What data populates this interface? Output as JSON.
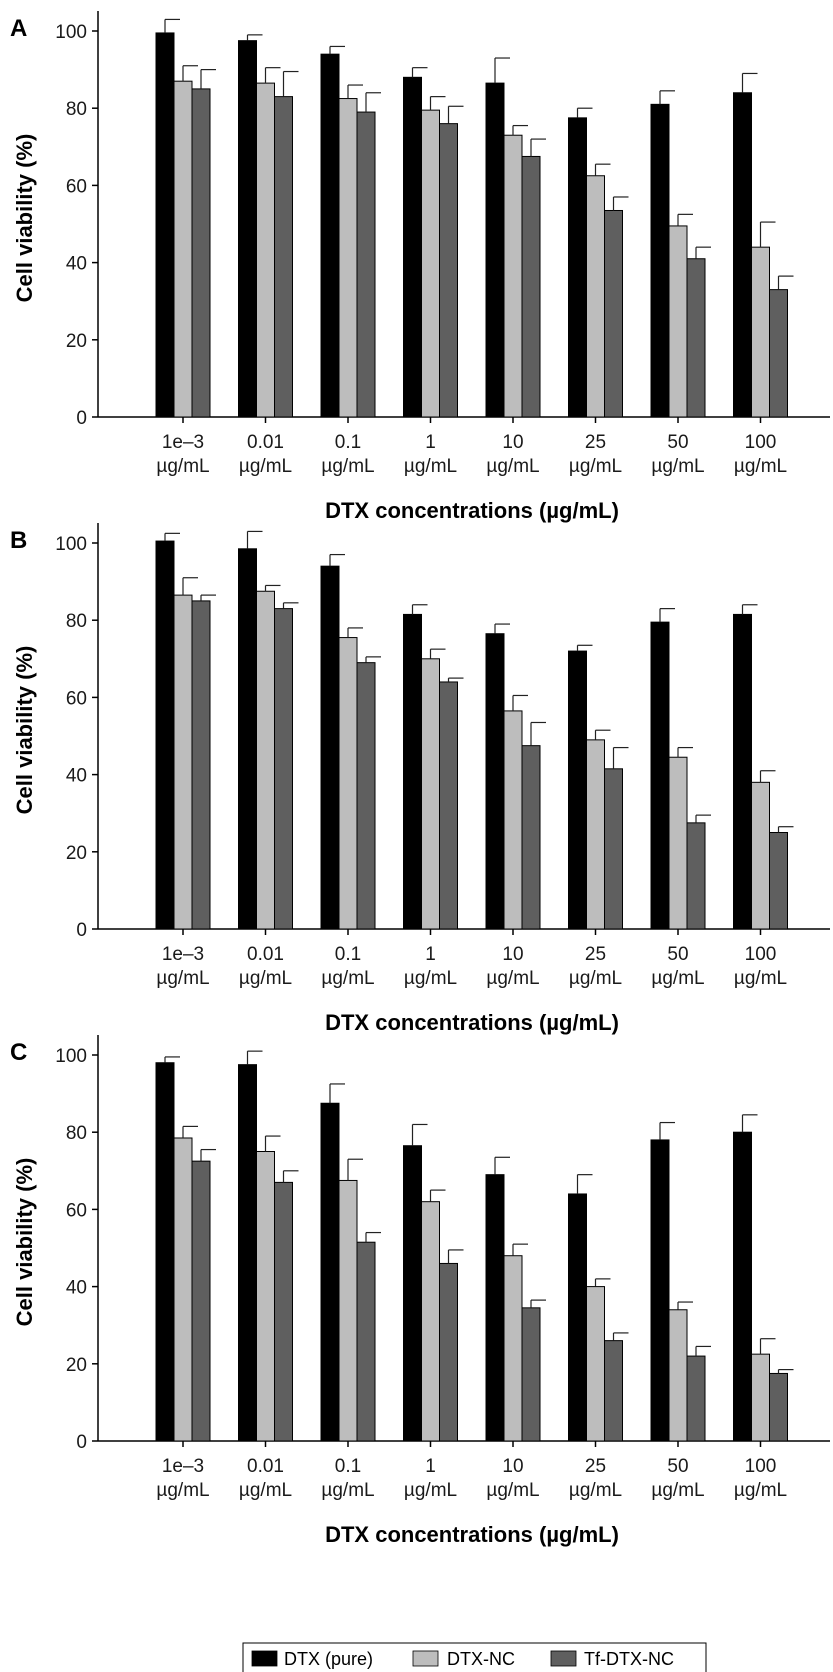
{
  "legend": [
    {
      "label": "DTX (pure)",
      "color": "#000000"
    },
    {
      "label": "DTX-NC",
      "color": "#bdbdbd"
    },
    {
      "label": "Tf-DTX-NC",
      "color": "#5f5f5f"
    }
  ],
  "chart_data": [
    {
      "type": "bar",
      "panel": "A",
      "xlabel": "DTX concentrations (µg/mL)",
      "ylabel": "Cell viability (%)",
      "ylim": [
        0,
        100
      ],
      "yticks": [
        "0",
        "20",
        "40",
        "60",
        "80",
        "100"
      ],
      "categories": [
        [
          "1e–3",
          "µg/mL"
        ],
        [
          "0.01",
          "µg/mL"
        ],
        [
          "0.1",
          "µg/mL"
        ],
        [
          "1",
          "µg/mL"
        ],
        [
          "10",
          "µg/mL"
        ],
        [
          "25",
          "µg/mL"
        ],
        [
          "50",
          "µg/mL"
        ],
        [
          "100",
          "µg/mL"
        ]
      ],
      "series": [
        {
          "name": "DTX (pure)",
          "values": [
            99.5,
            97.5,
            94,
            88,
            86.5,
            77.5,
            81,
            84
          ],
          "errors": [
            3.5,
            1.5,
            2,
            2.5,
            6.5,
            2.5,
            3.5,
            5
          ]
        },
        {
          "name": "DTX-NC",
          "values": [
            87,
            86.5,
            82.5,
            79.5,
            73,
            62.5,
            49.5,
            44
          ],
          "errors": [
            4,
            4,
            3.5,
            3.5,
            2.5,
            3,
            3,
            6.5
          ]
        },
        {
          "name": "Tf-DTX-NC",
          "values": [
            85,
            83,
            79,
            76,
            67.5,
            53.5,
            41,
            33
          ],
          "errors": [
            5,
            6.5,
            5,
            4.5,
            4.5,
            3.5,
            3,
            3.5
          ]
        }
      ]
    },
    {
      "type": "bar",
      "panel": "B",
      "xlabel": "DTX concentrations (µg/mL)",
      "ylabel": "Cell viability (%)",
      "ylim": [
        0,
        100
      ],
      "yticks": [
        "0",
        "20",
        "40",
        "60",
        "80",
        "100"
      ],
      "categories": [
        [
          "1e–3",
          "µg/mL"
        ],
        [
          "0.01",
          "µg/mL"
        ],
        [
          "0.1",
          "µg/mL"
        ],
        [
          "1",
          "µg/mL"
        ],
        [
          "10",
          "µg/mL"
        ],
        [
          "25",
          "µg/mL"
        ],
        [
          "50",
          "µg/mL"
        ],
        [
          "100",
          "µg/mL"
        ]
      ],
      "series": [
        {
          "name": "DTX (pure)",
          "values": [
            100.5,
            98.5,
            94,
            81.5,
            76.5,
            72,
            79.5,
            81.5
          ],
          "errors": [
            2,
            4.5,
            3,
            2.5,
            2.5,
            1.5,
            3.5,
            2.5
          ]
        },
        {
          "name": "DTX-NC",
          "values": [
            86.5,
            87.5,
            75.5,
            70,
            56.5,
            49,
            44.5,
            38
          ],
          "errors": [
            4.5,
            1.5,
            2.5,
            2.5,
            4,
            2.5,
            2.5,
            3
          ]
        },
        {
          "name": "Tf-DTX-NC",
          "values": [
            85,
            83,
            69,
            64,
            47.5,
            41.5,
            27.5,
            25
          ],
          "errors": [
            1.5,
            1.5,
            1.5,
            1,
            6,
            5.5,
            2,
            1.5
          ]
        }
      ]
    },
    {
      "type": "bar",
      "panel": "C",
      "xlabel": "DTX concentrations (µg/mL)",
      "ylabel": "Cell viability (%)",
      "ylim": [
        0,
        100
      ],
      "yticks": [
        "0",
        "20",
        "40",
        "60",
        "80",
        "100"
      ],
      "categories": [
        [
          "1e–3",
          "µg/mL"
        ],
        [
          "0.01",
          "µg/mL"
        ],
        [
          "0.1",
          "µg/mL"
        ],
        [
          "1",
          "µg/mL"
        ],
        [
          "10",
          "µg/mL"
        ],
        [
          "25",
          "µg/mL"
        ],
        [
          "50",
          "µg/mL"
        ],
        [
          "100",
          "µg/mL"
        ]
      ],
      "series": [
        {
          "name": "DTX (pure)",
          "values": [
            98,
            97.5,
            87.5,
            76.5,
            69,
            64,
            78,
            80
          ],
          "errors": [
            1.5,
            3.5,
            5,
            5.5,
            4.5,
            5,
            4.5,
            4.5
          ]
        },
        {
          "name": "DTX-NC",
          "values": [
            78.5,
            75,
            67.5,
            62,
            48,
            40,
            34,
            22.5
          ],
          "errors": [
            3,
            4,
            5.5,
            3,
            3,
            2,
            2,
            4
          ]
        },
        {
          "name": "Tf-DTX-NC",
          "values": [
            72.5,
            67,
            51.5,
            46,
            34.5,
            26,
            22,
            17.5
          ],
          "errors": [
            3,
            3,
            2.5,
            3.5,
            2,
            2,
            2.5,
            1
          ]
        }
      ]
    }
  ]
}
